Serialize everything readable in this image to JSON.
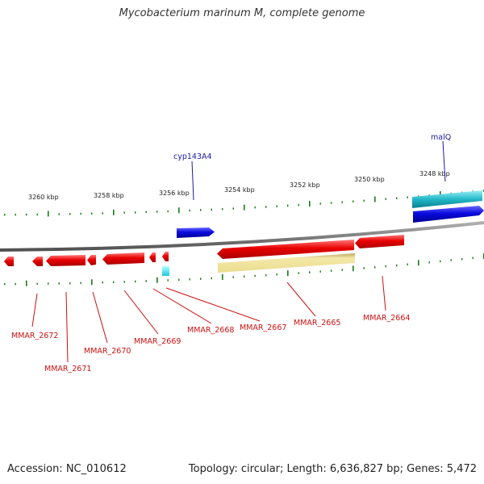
{
  "title": "Mycobacterium marinum M, complete genome",
  "footer": {
    "accession": "Accession: NC_010612",
    "topology": "Topology: circular; Length: 6,636,827 bp; Genes: 5,472"
  },
  "colors": {
    "forward_gene": "#0a0ae0",
    "reverse_gene": "#e80000",
    "forward_cds": "#22b8c8",
    "reverse_cds_cyan": "#33e0f0",
    "rrna": "#f2e4a0",
    "backbone": "#8a8a8a",
    "tick": "#1a7a1a",
    "forward_label": "#1a1aa8",
    "reverse_label": "#cc1111"
  },
  "scale_labels": [
    "3260 kbp",
    "3258 kbp",
    "3256 kbp",
    "3254 kbp",
    "3252 kbp",
    "3250 kbp",
    "3248 kbp"
  ],
  "forward_labels": [
    "cyp143A4",
    "malQ"
  ],
  "reverse_labels": [
    "MMAR_2672",
    "MMAR_2671",
    "MMAR_2670",
    "MMAR_2669",
    "MMAR_2668",
    "MMAR_2667",
    "MMAR_2665",
    "MMAR_2664"
  ]
}
